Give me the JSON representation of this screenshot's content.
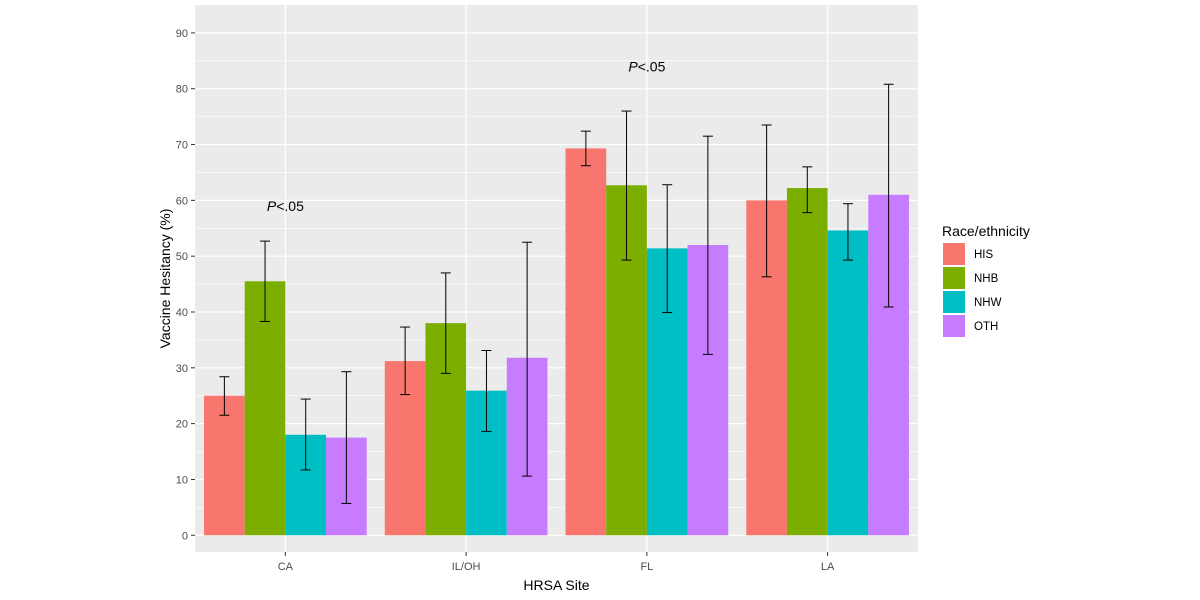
{
  "chart_data": {
    "type": "bar",
    "xlabel": "HRSA Site",
    "ylabel": "Vaccine Hesitancy (%)",
    "categories": [
      "CA",
      "IL/OH",
      "FL",
      "LA"
    ],
    "ylim": [
      -3,
      95
    ],
    "yticks": [
      0,
      10,
      20,
      30,
      40,
      50,
      60,
      70,
      80,
      90
    ],
    "grid": true,
    "legend": {
      "title": "Race/ethnicity",
      "position": "right"
    },
    "series": [
      {
        "name": "HIS",
        "color": "#F8766D",
        "values": [
          25.0,
          31.2,
          69.3,
          60.0
        ],
        "err_low": [
          21.5,
          25.2,
          66.2,
          46.3
        ],
        "err_high": [
          28.4,
          37.3,
          72.4,
          73.5
        ]
      },
      {
        "name": "NHB",
        "color": "#7CAE00",
        "values": [
          45.5,
          38.0,
          62.7,
          62.2
        ],
        "err_low": [
          38.3,
          29.0,
          49.3,
          57.8
        ],
        "err_high": [
          52.7,
          47.0,
          76.0,
          66.0
        ]
      },
      {
        "name": "NHW",
        "color": "#00BFC4",
        "values": [
          18.0,
          25.9,
          51.4,
          54.6
        ],
        "err_low": [
          11.7,
          18.6,
          39.9,
          49.3
        ],
        "err_high": [
          24.4,
          33.1,
          62.8,
          59.4
        ]
      },
      {
        "name": "OTH",
        "color": "#C77CFF",
        "values": [
          17.5,
          31.8,
          52.0,
          61.0
        ],
        "err_low": [
          5.7,
          10.6,
          32.4,
          40.9
        ],
        "err_high": [
          29.3,
          52.5,
          71.5,
          80.8
        ]
      }
    ],
    "annotations": [
      {
        "category": "CA",
        "y": 59,
        "italic": "P",
        "text": "<.05"
      },
      {
        "category": "FL",
        "y": 84,
        "italic": "P",
        "text": "<.05"
      }
    ]
  }
}
